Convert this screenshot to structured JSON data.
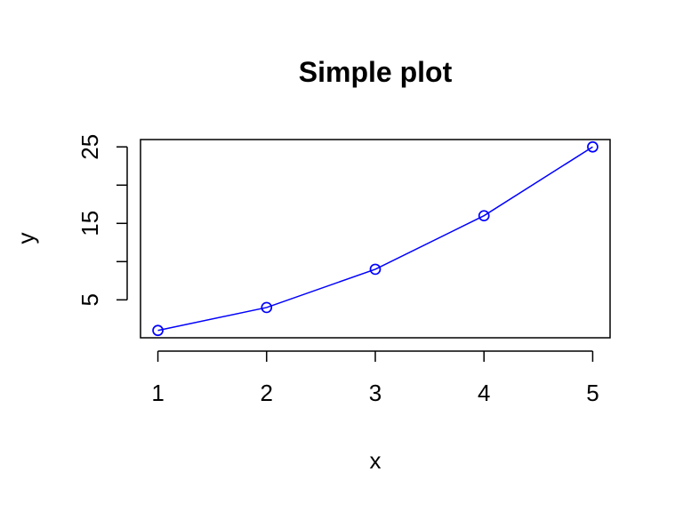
{
  "chart_data": {
    "type": "line",
    "title": "Simple plot",
    "xlabel": "x",
    "ylabel": "y",
    "x": [
      1,
      2,
      3,
      4,
      5
    ],
    "series": [
      {
        "values": [
          1,
          4,
          9,
          16,
          25
        ],
        "color": "#0000ff",
        "marker": "open-circle"
      }
    ],
    "xlim": [
      0.84,
      5.16
    ],
    "ylim": [
      0.04,
      25.96
    ],
    "x_ticks": [
      "1",
      "2",
      "3",
      "4",
      "5"
    ],
    "y_ticks": [
      "5",
      "15",
      "25"
    ],
    "y_minor_ticks": [
      10,
      20
    ],
    "grid": false,
    "legend": "none"
  }
}
